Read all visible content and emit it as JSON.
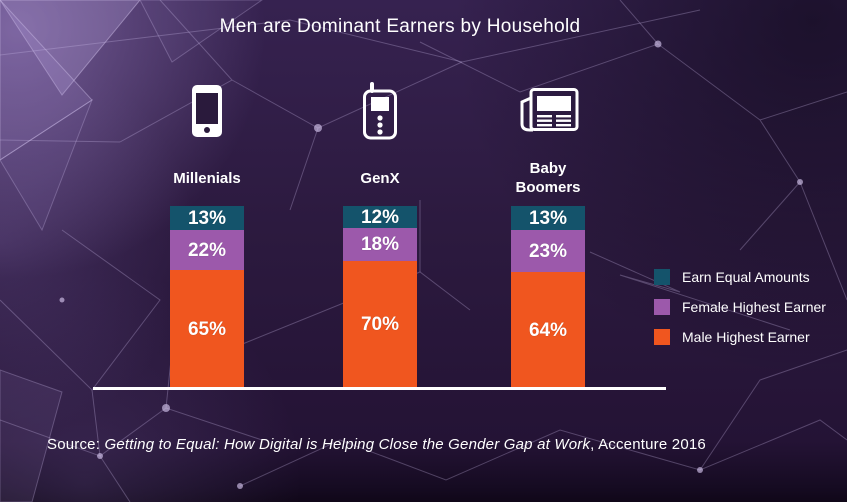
{
  "title": "Men are Dominant Earners by Household",
  "colors": {
    "background": "#2c1a3f",
    "equal": "#14536b",
    "female": "#9c59ab",
    "male": "#f0561f",
    "text": "#ffffff",
    "baseline": "#ffffff"
  },
  "legend": [
    {
      "key": "equal",
      "label": "Earn Equal Amounts",
      "color": "#14536b"
    },
    {
      "key": "female",
      "label": "Female Highest Earner",
      "color": "#9c59ab"
    },
    {
      "key": "male",
      "label": "Male Highest Earner",
      "color": "#f0561f"
    }
  ],
  "chart_data": {
    "type": "bar",
    "stacked": true,
    "title": "Men are Dominant Earners by Household",
    "categories": [
      "Millenials",
      "GenX",
      "Baby Boomers"
    ],
    "category_icons": [
      "smartphone-icon",
      "feature-phone-icon",
      "newspaper-icon"
    ],
    "series": [
      {
        "name": "Earn Equal Amounts",
        "color": "#14536b",
        "values": [
          13,
          12,
          13
        ]
      },
      {
        "name": "Female Highest Earner",
        "color": "#9c59ab",
        "values": [
          22,
          18,
          23
        ]
      },
      {
        "name": "Male Highest Earner",
        "color": "#f0561f",
        "values": [
          65,
          70,
          64
        ]
      }
    ],
    "unit": "%",
    "ylim": [
      0,
      100
    ],
    "grid": false,
    "legend_position": "right"
  },
  "source": {
    "prefix": "Source: ",
    "citation": "Getting to Equal: How Digital is Helping Close the Gender Gap at Work",
    "suffix": ", Accenture 2016"
  }
}
